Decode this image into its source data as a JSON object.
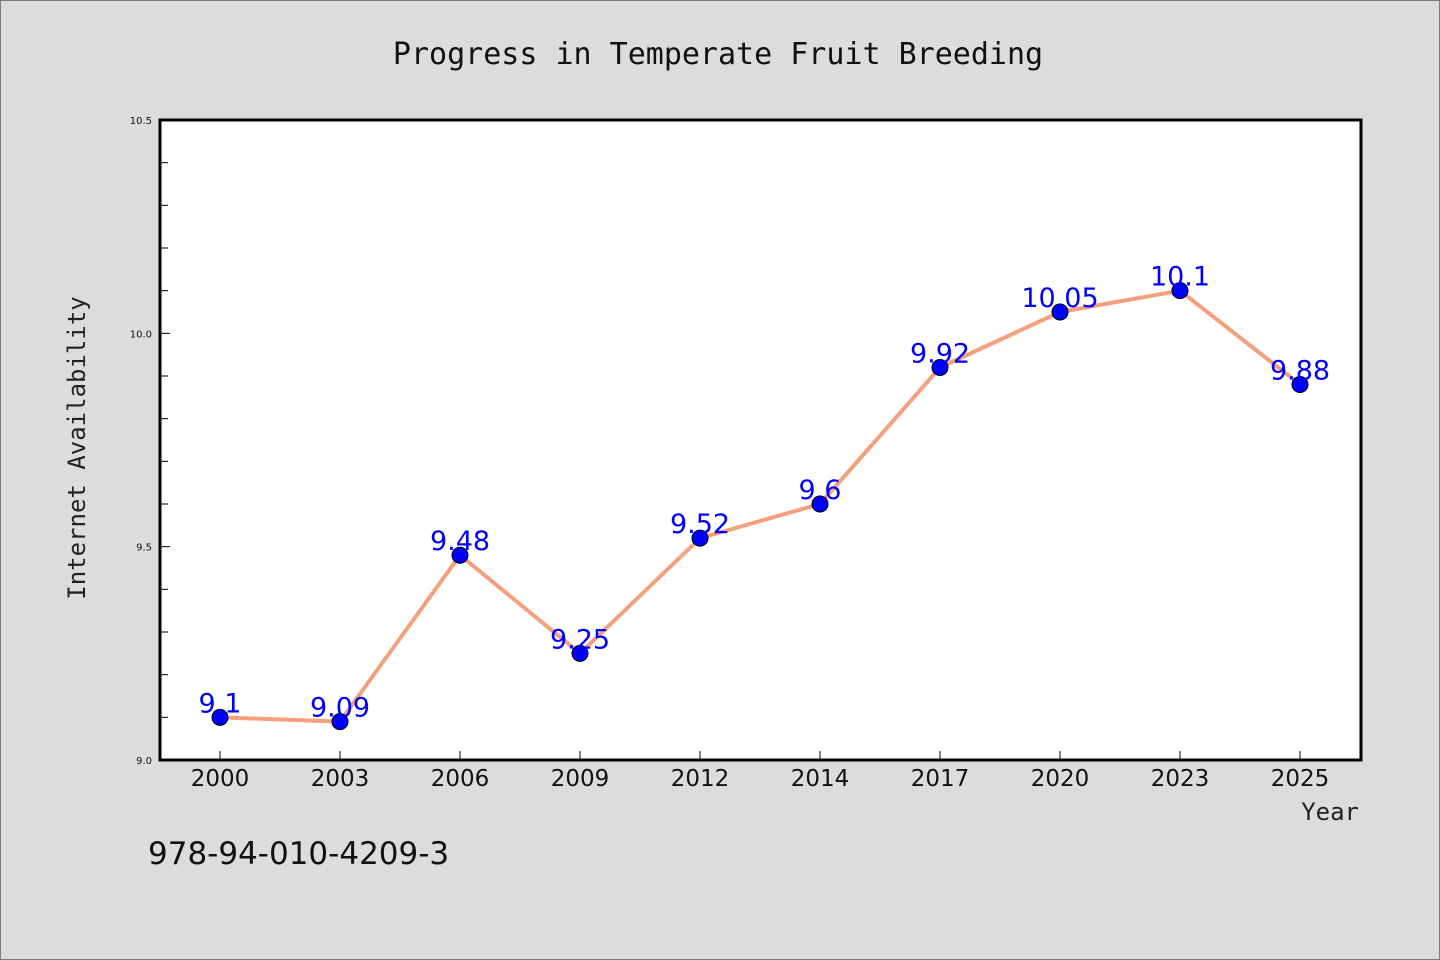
{
  "chart_data": {
    "type": "line",
    "title": "Progress in Temperate Fruit Breeding",
    "xlabel": "Year",
    "ylabel": "Internet Availability",
    "categories": [
      "2000",
      "2003",
      "2006",
      "2009",
      "2012",
      "2014",
      "2017",
      "2020",
      "2023",
      "2025"
    ],
    "values": [
      9.1,
      9.09,
      9.48,
      9.25,
      9.52,
      9.6,
      9.92,
      10.05,
      10.1,
      9.88
    ],
    "data_labels": [
      "9.1",
      "9.09",
      "9.48",
      "9.25",
      "9.52",
      "9.6",
      "9.92",
      "10.05",
      "10.1",
      "9.88"
    ],
    "ylim": [
      9.0,
      10.5
    ],
    "y_ticks": [
      9.0,
      9.5,
      10.0,
      10.5
    ],
    "y_tick_labels": [
      "9.0",
      "9.5",
      "10.0",
      "10.5"
    ],
    "grid": false,
    "legend": "none",
    "colors": {
      "line": "#f4a07f",
      "marker": "#0000ff",
      "data_label": "#0000ff",
      "background": "#dcdcdc",
      "plot_background": "#ffffff"
    }
  },
  "annotation": "978-94-010-4209-3"
}
